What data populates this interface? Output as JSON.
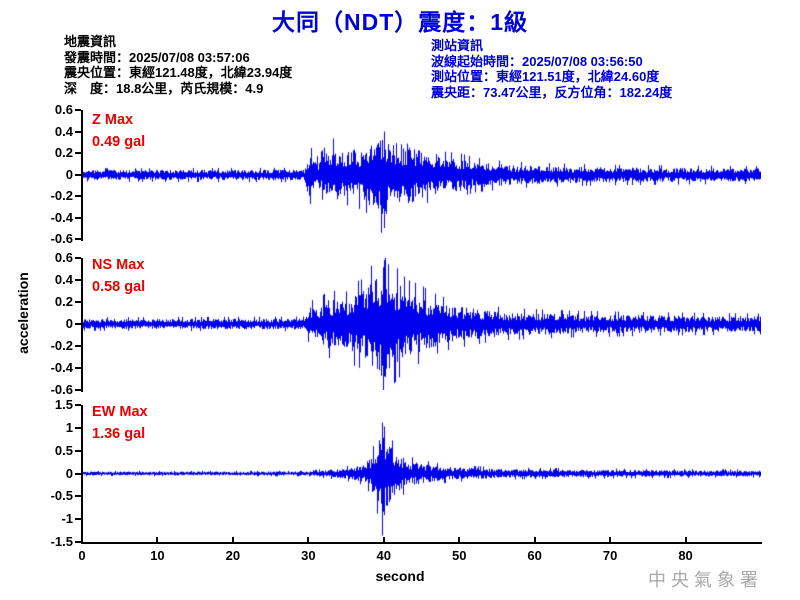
{
  "title": "大同（NDT）震度：1級",
  "quake_info": {
    "heading": "地震資訊",
    "lines": [
      "發震時間：2025/07/08 03:57:06",
      "震央位置：東經121.48度，北緯23.94度",
      "深　度：18.8公里，芮氏規模：4.9"
    ]
  },
  "station_info": {
    "heading": "測站資訊",
    "lines": [
      "波線起始時間：2025/07/08 03:56:50",
      "測站位置：東經121.51度，北緯24.60度",
      "震央距：73.47公里，反方位角：182.24度"
    ]
  },
  "watermark": "中央氣象署",
  "colors": {
    "trace": "#0000ee",
    "title_blue": "#0000dd",
    "station_blue": "#0000cc",
    "max_red": "#ee0000",
    "axis_black": "#000000",
    "watermark_gray": "#a9a9a9"
  },
  "chart_data": {
    "type": "line",
    "title": "大同（NDT）震度：1級",
    "xlabel": "second",
    "ylabel": "acceleration",
    "x_range": [
      0,
      90
    ],
    "xticks": [
      0,
      10,
      20,
      30,
      40,
      50,
      60,
      70,
      80
    ],
    "grid": false,
    "traces": [
      {
        "id": "Z",
        "label": "Z Max",
        "max_label": "0.49 gal",
        "max_gal": 0.49,
        "peak_time": 40,
        "peak_polarity": -1,
        "ylim": [
          -0.6,
          0.6
        ],
        "yticks": [
          0.6,
          0.4,
          0.2,
          0,
          -0.2,
          -0.4,
          -0.6
        ],
        "seed": 20250708,
        "envelope": [
          [
            0,
            0.045
          ],
          [
            29.5,
            0.05
          ],
          [
            30,
            0.22
          ],
          [
            31,
            0.12
          ],
          [
            32,
            0.18
          ],
          [
            33,
            0.26
          ],
          [
            34,
            0.22
          ],
          [
            35,
            0.2
          ],
          [
            36,
            0.26
          ],
          [
            37,
            0.22
          ],
          [
            38,
            0.28
          ],
          [
            39,
            0.3
          ],
          [
            40,
            0.45
          ],
          [
            40.5,
            0.3
          ],
          [
            41,
            0.33
          ],
          [
            42,
            0.28
          ],
          [
            43,
            0.3
          ],
          [
            44,
            0.24
          ],
          [
            45,
            0.22
          ],
          [
            46,
            0.18
          ],
          [
            47,
            0.2
          ],
          [
            48,
            0.16
          ],
          [
            50,
            0.15
          ],
          [
            52,
            0.12
          ],
          [
            55,
            0.1
          ],
          [
            58,
            0.09
          ],
          [
            62,
            0.08
          ],
          [
            70,
            0.07
          ],
          [
            80,
            0.065
          ],
          [
            90,
            0.06
          ]
        ]
      },
      {
        "id": "NS",
        "label": "NS Max",
        "max_label": "0.58 gal",
        "max_gal": 0.58,
        "peak_time": 40,
        "peak_polarity": 1,
        "ylim": [
          -0.6,
          0.6
        ],
        "yticks": [
          0.6,
          0.4,
          0.2,
          0,
          -0.2,
          -0.4,
          -0.6
        ],
        "seed": 35750,
        "envelope": [
          [
            0,
            0.045
          ],
          [
            29.5,
            0.05
          ],
          [
            30,
            0.18
          ],
          [
            31,
            0.14
          ],
          [
            32,
            0.2
          ],
          [
            33,
            0.24
          ],
          [
            34,
            0.2
          ],
          [
            35,
            0.22
          ],
          [
            36,
            0.28
          ],
          [
            37,
            0.3
          ],
          [
            38,
            0.38
          ],
          [
            39,
            0.42
          ],
          [
            40,
            0.58
          ],
          [
            40.5,
            0.4
          ],
          [
            41,
            0.42
          ],
          [
            42,
            0.36
          ],
          [
            43,
            0.3
          ],
          [
            44,
            0.28
          ],
          [
            45,
            0.26
          ],
          [
            46,
            0.22
          ],
          [
            47,
            0.2
          ],
          [
            48,
            0.18
          ],
          [
            50,
            0.16
          ],
          [
            53,
            0.13
          ],
          [
            56,
            0.11
          ],
          [
            60,
            0.1
          ],
          [
            65,
            0.09
          ],
          [
            75,
            0.08
          ],
          [
            90,
            0.07
          ]
        ]
      },
      {
        "id": "EW",
        "label": "EW Max",
        "max_label": "1.36 gal",
        "max_gal": 1.36,
        "peak_time": 39.8,
        "peak_polarity": -1,
        "ylim": [
          -1.5,
          1.5
        ],
        "yticks": [
          1.5,
          1,
          0.5,
          0,
          -0.5,
          -1,
          -1.5
        ],
        "seed": 182240,
        "envelope": [
          [
            0,
            0.04
          ],
          [
            30,
            0.045
          ],
          [
            31,
            0.06
          ],
          [
            33,
            0.09
          ],
          [
            35,
            0.12
          ],
          [
            37,
            0.18
          ],
          [
            38,
            0.3
          ],
          [
            39,
            0.55
          ],
          [
            39.8,
            1.36
          ],
          [
            40.3,
            0.85
          ],
          [
            41,
            0.55
          ],
          [
            42,
            0.4
          ],
          [
            43,
            0.3
          ],
          [
            44,
            0.25
          ],
          [
            45,
            0.22
          ],
          [
            47,
            0.17
          ],
          [
            49,
            0.14
          ],
          [
            52,
            0.12
          ],
          [
            56,
            0.1
          ],
          [
            60,
            0.09
          ],
          [
            70,
            0.08
          ],
          [
            80,
            0.07
          ],
          [
            90,
            0.065
          ]
        ]
      }
    ]
  }
}
